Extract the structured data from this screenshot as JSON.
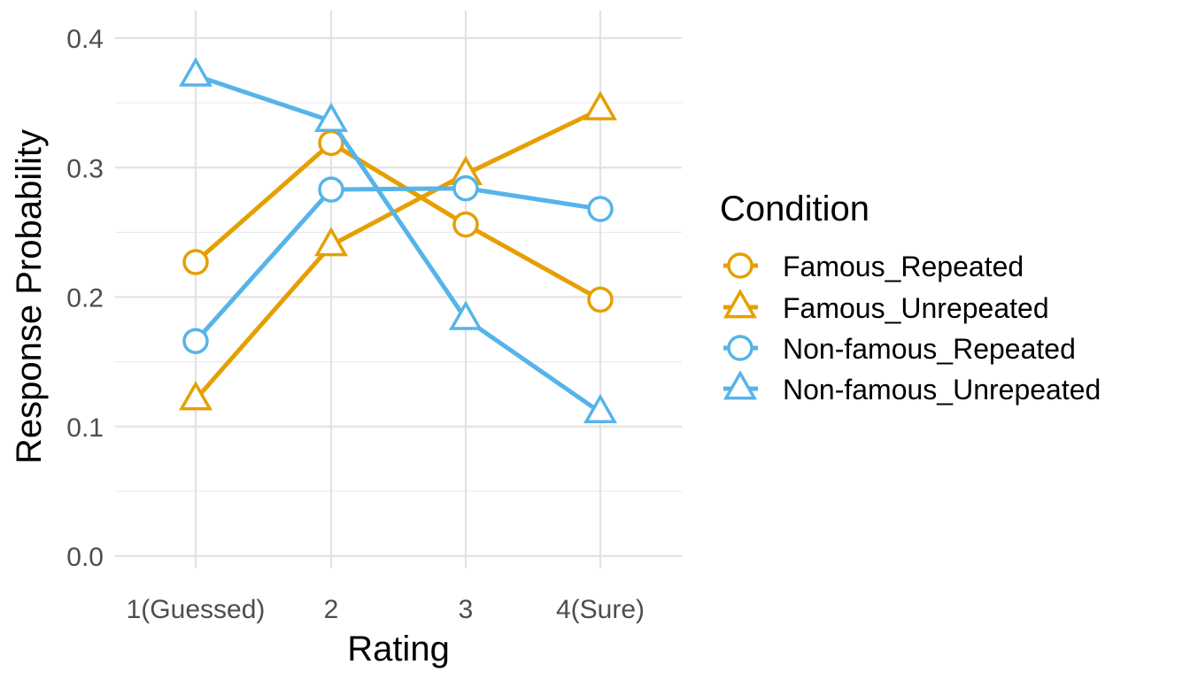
{
  "chart_data": {
    "type": "line",
    "title": "",
    "xlabel": "Rating",
    "ylabel": "Response Probability",
    "categories": [
      "1(Guessed)",
      "2",
      "3",
      "4(Sure)"
    ],
    "ylim": [
      0,
      0.4
    ],
    "yticks": [
      "0.0",
      "0.1",
      "0.2",
      "0.3",
      "0.4"
    ],
    "grid": true,
    "legend": {
      "title": "Condition",
      "position": "right"
    },
    "series": [
      {
        "name": "Famous_Repeated",
        "color": "#E69F00",
        "shape": "circle",
        "values": [
          0.227,
          0.319,
          0.256,
          0.198
        ]
      },
      {
        "name": "Famous_Unrepeated",
        "color": "#E69F00",
        "shape": "triangle",
        "values": [
          0.121,
          0.24,
          0.295,
          0.345
        ]
      },
      {
        "name": "Non-famous_Repeated",
        "color": "#56B4E9",
        "shape": "circle",
        "values": [
          0.166,
          0.283,
          0.284,
          0.268
        ]
      },
      {
        "name": "Non-famous_Unrepeated",
        "color": "#56B4E9",
        "shape": "triangle",
        "values": [
          0.371,
          0.336,
          0.183,
          0.111
        ]
      }
    ]
  }
}
